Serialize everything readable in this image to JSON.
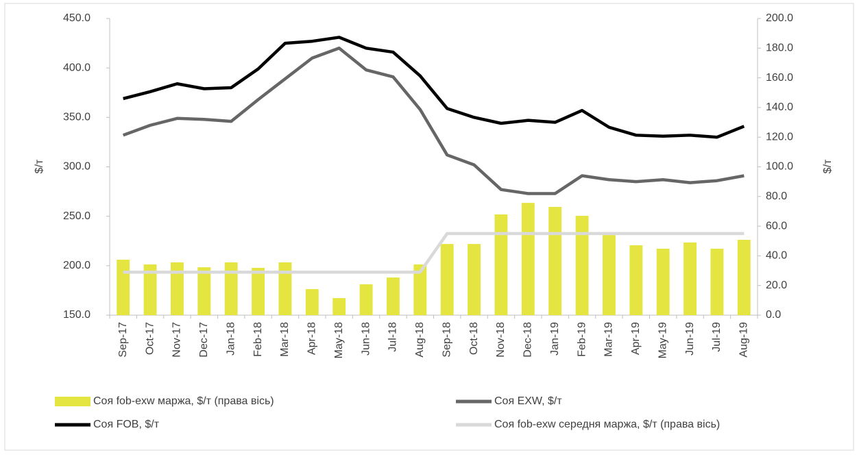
{
  "chart_data": {
    "type": "combo",
    "ylabel": "$/т",
    "y2label": "$/т",
    "categories": [
      "Sep-17",
      "Oct-17",
      "Nov-17",
      "Dec-17",
      "Jan-18",
      "Feb-18",
      "Mar-18",
      "Apr-18",
      "May-18",
      "Jun-18",
      "Jul-18",
      "Aug-18",
      "Sep-18",
      "Oct-18",
      "Nov-18",
      "Dec-18",
      "Jan-19",
      "Feb-19",
      "Mar-19",
      "Apr-19",
      "May-19",
      "Jun-19",
      "Jul-19",
      "Aug-19"
    ],
    "ylim": [
      150,
      450
    ],
    "yticks": [
      {
        "value": 150,
        "label": "150.0"
      },
      {
        "value": 200,
        "label": "200.0"
      },
      {
        "value": 250,
        "label": "250.0"
      },
      {
        "value": 300,
        "label": "300.0"
      },
      {
        "value": 350,
        "label": "350.0"
      },
      {
        "value": 400,
        "label": "400.0"
      },
      {
        "value": 450,
        "label": "450.0"
      }
    ],
    "y2lim": [
      0,
      200
    ],
    "y2ticks": [
      {
        "value": 0,
        "label": "0.0"
      },
      {
        "value": 20,
        "label": "20.0"
      },
      {
        "value": 40,
        "label": "40.0"
      },
      {
        "value": 60,
        "label": "60.0"
      },
      {
        "value": 80,
        "label": "80.0"
      },
      {
        "value": 100,
        "label": "100.0"
      },
      {
        "value": 120,
        "label": "120.0"
      },
      {
        "value": 140,
        "label": "140.0"
      },
      {
        "value": 160,
        "label": "160.0"
      },
      {
        "value": 180,
        "label": "180.0"
      },
      {
        "value": 200,
        "label": "200.0"
      }
    ],
    "series": [
      {
        "name": "Соя fob-exw маржа, $/т (права вісь)",
        "type": "bar",
        "axis": "y2",
        "color": "#e5e542",
        "values": [
          37.4,
          34.2,
          35.6,
          32.3,
          35.6,
          31.9,
          35.6,
          17.6,
          11.5,
          20.8,
          25.4,
          34.2,
          48,
          48,
          67.9,
          75.7,
          73,
          67,
          54,
          47.1,
          44.8,
          49,
          44.8,
          50.8
        ]
      },
      {
        "name": "Соя EXW, $/т",
        "type": "line",
        "color": "#666666",
        "values": [
          332,
          342,
          349,
          348,
          346,
          368,
          389,
          410,
          420,
          398,
          391,
          358,
          312,
          302,
          277,
          273,
          273,
          291,
          287,
          285,
          287,
          284,
          286,
          291
        ]
      },
      {
        "name": "Соя FOB, $/т",
        "type": "line",
        "color": "#000000",
        "values": [
          369,
          376,
          384,
          379,
          380,
          399,
          425,
          427,
          431,
          420,
          416,
          392,
          359,
          350,
          344,
          347,
          345,
          357,
          340,
          332,
          331,
          332,
          330,
          341
        ]
      },
      {
        "name": "Соя fob-exw середня маржа, $/т (права вісь)",
        "type": "line",
        "axis": "y2",
        "color": "#d9d9d9",
        "values": [
          29,
          29,
          29,
          29,
          29,
          29,
          29,
          29,
          29,
          29,
          29,
          29,
          55,
          55,
          55,
          55,
          55,
          55,
          55,
          55,
          55,
          55,
          55,
          55
        ]
      }
    ]
  }
}
